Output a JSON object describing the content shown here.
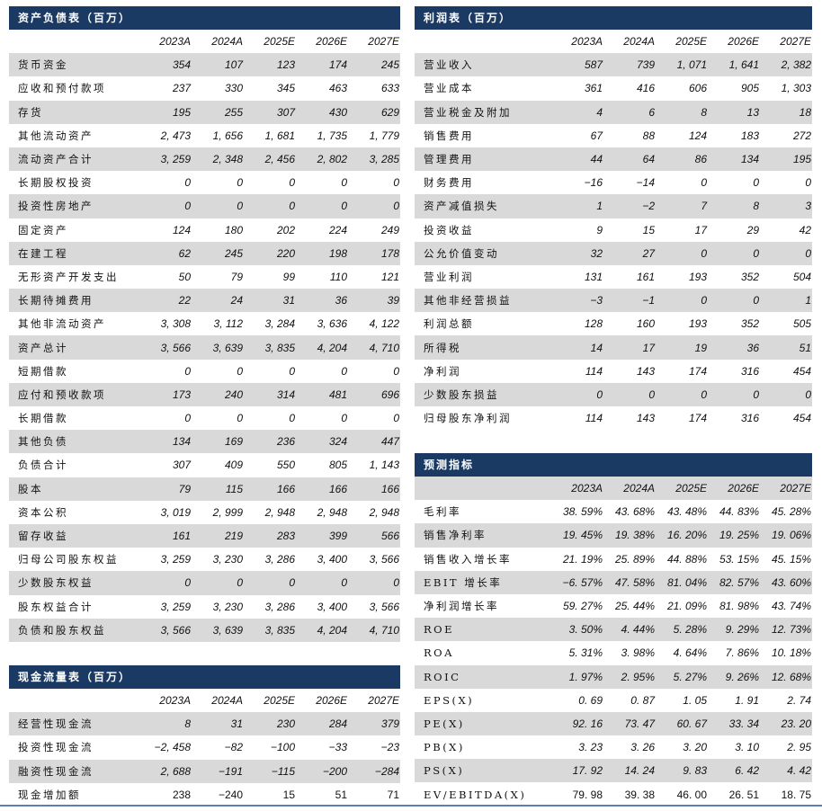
{
  "balance_sheet": {
    "title": "资产负债表（百万）",
    "years": [
      "2023A",
      "2024A",
      "2025E",
      "2026E",
      "2027E"
    ],
    "rows": [
      {
        "label": "货币资金",
        "values": [
          "354",
          "107",
          "123",
          "174",
          "245"
        ]
      },
      {
        "label": "应收和预付款项",
        "values": [
          "237",
          "330",
          "345",
          "463",
          "633"
        ]
      },
      {
        "label": "存货",
        "values": [
          "195",
          "255",
          "307",
          "430",
          "629"
        ]
      },
      {
        "label": "其他流动资产",
        "values": [
          "2, 473",
          "1, 656",
          "1, 681",
          "1, 735",
          "1, 779"
        ]
      },
      {
        "label": "流动资产合计",
        "values": [
          "3, 259",
          "2, 348",
          "2, 456",
          "2, 802",
          "3, 285"
        ]
      },
      {
        "label": "长期股权投资",
        "values": [
          "0",
          "0",
          "0",
          "0",
          "0"
        ]
      },
      {
        "label": "投资性房地产",
        "values": [
          "0",
          "0",
          "0",
          "0",
          "0"
        ]
      },
      {
        "label": "固定资产",
        "values": [
          "124",
          "180",
          "202",
          "224",
          "249"
        ]
      },
      {
        "label": "在建工程",
        "values": [
          "62",
          "245",
          "220",
          "198",
          "178"
        ]
      },
      {
        "label": "无形资产开发支出",
        "values": [
          "50",
          "79",
          "99",
          "110",
          "121"
        ]
      },
      {
        "label": "长期待摊费用",
        "values": [
          "22",
          "24",
          "31",
          "36",
          "39"
        ]
      },
      {
        "label": "其他非流动资产",
        "values": [
          "3, 308",
          "3, 112",
          "3, 284",
          "3, 636",
          "4, 122"
        ]
      },
      {
        "label": "资产总计",
        "values": [
          "3, 566",
          "3, 639",
          "3, 835",
          "4, 204",
          "4, 710"
        ]
      },
      {
        "label": "短期借款",
        "values": [
          "0",
          "0",
          "0",
          "0",
          "0"
        ]
      },
      {
        "label": "应付和预收款项",
        "values": [
          "173",
          "240",
          "314",
          "481",
          "696"
        ]
      },
      {
        "label": "长期借款",
        "values": [
          "0",
          "0",
          "0",
          "0",
          "0"
        ]
      },
      {
        "label": "其他负债",
        "values": [
          "134",
          "169",
          "236",
          "324",
          "447"
        ]
      },
      {
        "label": "负债合计",
        "values": [
          "307",
          "409",
          "550",
          "805",
          "1, 143"
        ]
      },
      {
        "label": "股本",
        "values": [
          "79",
          "115",
          "166",
          "166",
          "166"
        ]
      },
      {
        "label": "资本公积",
        "values": [
          "3, 019",
          "2, 999",
          "2, 948",
          "2, 948",
          "2, 948"
        ]
      },
      {
        "label": "留存收益",
        "values": [
          "161",
          "219",
          "283",
          "399",
          "566"
        ]
      },
      {
        "label": "归母公司股东权益",
        "values": [
          "3, 259",
          "3, 230",
          "3, 286",
          "3, 400",
          "3, 566"
        ]
      },
      {
        "label": "少数股东权益",
        "values": [
          "0",
          "0",
          "0",
          "0",
          "0"
        ]
      },
      {
        "label": "股东权益合计",
        "values": [
          "3, 259",
          "3, 230",
          "3, 286",
          "3, 400",
          "3, 566"
        ]
      },
      {
        "label": "负债和股东权益",
        "values": [
          "3, 566",
          "3, 639",
          "3, 835",
          "4, 204",
          "4, 710"
        ]
      }
    ]
  },
  "cash_flow": {
    "title": "现金流量表（百万）",
    "years": [
      "2023A",
      "2024A",
      "2025E",
      "2026E",
      "2027E"
    ],
    "rows": [
      {
        "label": "经营性现金流",
        "values": [
          "8",
          "31",
          "230",
          "284",
          "379"
        ]
      },
      {
        "label": "投资性现金流",
        "values": [
          "−2, 458",
          "−82",
          "−100",
          "−33",
          "−23"
        ]
      },
      {
        "label": "融资性现金流",
        "values": [
          "2, 688",
          "−191",
          "−115",
          "−200",
          "−284"
        ]
      },
      {
        "label": "现金增加额",
        "values": [
          "238",
          "−240",
          "15",
          "51",
          "71"
        ]
      }
    ]
  },
  "income_statement": {
    "title": "利润表（百万）",
    "years": [
      "2023A",
      "2024A",
      "2025E",
      "2026E",
      "2027E"
    ],
    "rows": [
      {
        "label": "营业收入",
        "values": [
          "587",
          "739",
          "1, 071",
          "1, 641",
          "2, 382"
        ]
      },
      {
        "label": "营业成本",
        "values": [
          "361",
          "416",
          "606",
          "905",
          "1, 303"
        ]
      },
      {
        "label": "营业税金及附加",
        "values": [
          "4",
          "6",
          "8",
          "13",
          "18"
        ]
      },
      {
        "label": "销售费用",
        "values": [
          "67",
          "88",
          "124",
          "183",
          "272"
        ]
      },
      {
        "label": "管理费用",
        "values": [
          "44",
          "64",
          "86",
          "134",
          "195"
        ]
      },
      {
        "label": "财务费用",
        "values": [
          "−16",
          "−14",
          "0",
          "0",
          "0"
        ]
      },
      {
        "label": "资产减值损失",
        "values": [
          "1",
          "−2",
          "7",
          "8",
          "3"
        ]
      },
      {
        "label": "投资收益",
        "values": [
          "9",
          "15",
          "17",
          "29",
          "42"
        ]
      },
      {
        "label": "公允价值变动",
        "values": [
          "32",
          "27",
          "0",
          "0",
          "0"
        ]
      },
      {
        "label": "营业利润",
        "values": [
          "131",
          "161",
          "193",
          "352",
          "504"
        ]
      },
      {
        "label": "其他非经营损益",
        "values": [
          "−3",
          "−1",
          "0",
          "0",
          "1"
        ]
      },
      {
        "label": "利润总额",
        "values": [
          "128",
          "160",
          "193",
          "352",
          "505"
        ]
      },
      {
        "label": "所得税",
        "values": [
          "14",
          "17",
          "19",
          "36",
          "51"
        ]
      },
      {
        "label": "净利润",
        "values": [
          "114",
          "143",
          "174",
          "316",
          "454"
        ]
      },
      {
        "label": "少数股东损益",
        "values": [
          "0",
          "0",
          "0",
          "0",
          "0"
        ]
      },
      {
        "label": "归母股东净利润",
        "values": [
          "114",
          "143",
          "174",
          "316",
          "454"
        ]
      }
    ]
  },
  "forecast": {
    "title": "预测指标",
    "years": [
      "2023A",
      "2024A",
      "2025E",
      "2026E",
      "2027E"
    ],
    "rows": [
      {
        "label": "毛利率",
        "values": [
          "38. 59%",
          "43. 68%",
          "43. 48%",
          "44. 83%",
          "45. 28%"
        ]
      },
      {
        "label": "销售净利率",
        "values": [
          "19. 45%",
          "19. 38%",
          "16. 20%",
          "19. 25%",
          "19. 06%"
        ]
      },
      {
        "label": "销售收入增长率",
        "values": [
          "21. 19%",
          "25. 89%",
          "44. 88%",
          "53. 15%",
          "45. 15%"
        ]
      },
      {
        "label": "EBIT 增长率",
        "values": [
          "−6. 57%",
          "47. 58%",
          "81. 04%",
          "82. 57%",
          "43. 60%"
        ]
      },
      {
        "label": "净利润增长率",
        "values": [
          "59. 27%",
          "25. 44%",
          "21. 09%",
          "81. 98%",
          "43. 74%"
        ]
      },
      {
        "label": "ROE",
        "values": [
          "3. 50%",
          "4. 44%",
          "5. 28%",
          "9. 29%",
          "12. 73%"
        ]
      },
      {
        "label": "ROA",
        "values": [
          "5. 31%",
          "3. 98%",
          "4. 64%",
          "7. 86%",
          "10. 18%"
        ]
      },
      {
        "label": "ROIC",
        "values": [
          "1. 97%",
          "2. 95%",
          "5. 27%",
          "9. 26%",
          "12. 68%"
        ]
      },
      {
        "label": "EPS(X)",
        "values": [
          "0. 69",
          "0. 87",
          "1. 05",
          "1. 91",
          "2. 74"
        ]
      },
      {
        "label": "PE(X)",
        "values": [
          "92. 16",
          "73. 47",
          "60. 67",
          "33. 34",
          "23. 20"
        ]
      },
      {
        "label": "PB(X)",
        "values": [
          "3. 23",
          "3. 26",
          "3. 20",
          "3. 10",
          "2. 95"
        ]
      },
      {
        "label": "PS(X)",
        "values": [
          "17. 92",
          "14. 24",
          "9. 83",
          "6. 42",
          "4. 42"
        ]
      },
      {
        "label": "EV/EBITDA(X)",
        "values": [
          "79. 98",
          "39. 38",
          "46. 00",
          "26. 51",
          "18. 75"
        ]
      }
    ]
  },
  "colors": {
    "header_bg": "#1b3a63",
    "stripe": "#d9d9d9",
    "rule": "#5b7fb3"
  }
}
